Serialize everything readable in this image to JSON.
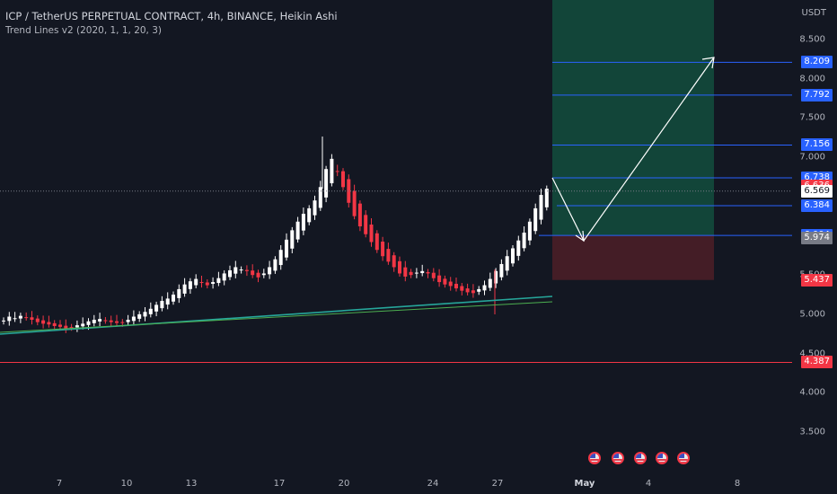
{
  "header": {
    "title": "ICP / TetherUS PERPETUAL CONTRACT, 4h, BINANCE, Heikin Ashi",
    "indicator": "Trend Lines v2 (2020, 1, 1, 20, 3)"
  },
  "axis": {
    "unit": "USDT",
    "y_ticks": [
      "8.500",
      "8.000",
      "7.500",
      "7.000",
      "5.500",
      "5.000",
      "4.500",
      "4.000",
      "3.500"
    ],
    "x_ticks": [
      "7",
      "10",
      "13",
      "17",
      "20",
      "24",
      "27",
      "May",
      "4",
      "8"
    ]
  },
  "price_labels": [
    {
      "value": "8.209",
      "kind": "target"
    },
    {
      "value": "7.792",
      "kind": "target"
    },
    {
      "value": "7.156",
      "kind": "target"
    },
    {
      "value": "6.738",
      "kind": "target"
    },
    {
      "value": "6.636",
      "kind": "current"
    },
    {
      "value": "6.569",
      "kind": "last"
    },
    {
      "value": "6.384",
      "kind": "target"
    },
    {
      "value": "6.004",
      "kind": "target"
    },
    {
      "value": "5.974",
      "kind": "prev"
    },
    {
      "value": "5.437",
      "kind": "stop"
    },
    {
      "value": "4.387",
      "kind": "support"
    }
  ],
  "colors": {
    "background": "#131722",
    "up": "#ffffff",
    "down": "#f23645",
    "level_line": "#2962ff",
    "trend_line": "#26a69a",
    "support_line": "#f23645",
    "profit_zone": "#134a3c",
    "loss_zone": "#4a1e27"
  },
  "events": {
    "count": 5,
    "icon": "us-flag-icon"
  },
  "chart_data": {
    "type": "candlestick",
    "series_style": "Heikin Ashi",
    "timeframe": "4h",
    "ylim": [
      3.2,
      8.9
    ],
    "closes": [
      4.92,
      4.97,
      4.95,
      4.98,
      4.96,
      4.93,
      4.9,
      4.88,
      4.87,
      4.85,
      4.84,
      4.82,
      4.83,
      4.86,
      4.88,
      4.91,
      4.93,
      4.94,
      4.92,
      4.9,
      4.89,
      4.9,
      4.93,
      4.97,
      5.0,
      5.03,
      5.07,
      5.12,
      5.17,
      5.2,
      5.25,
      5.32,
      5.38,
      5.42,
      5.45,
      5.4,
      5.37,
      5.41,
      5.46,
      5.52,
      5.56,
      5.6,
      5.57,
      5.55,
      5.5,
      5.47,
      5.52,
      5.6,
      5.7,
      5.82,
      5.95,
      6.07,
      6.18,
      6.28,
      6.35,
      6.45,
      6.62,
      6.85,
      6.98,
      6.82,
      6.62,
      6.42,
      6.25,
      6.12,
      6.02,
      5.92,
      5.82,
      5.74,
      5.67,
      5.6,
      5.52,
      5.48,
      5.5,
      5.53,
      5.55,
      5.52,
      5.46,
      5.41,
      5.38,
      5.36,
      5.33,
      5.3,
      5.28,
      5.27,
      5.32,
      5.37,
      5.45,
      5.55,
      5.64,
      5.74,
      5.84,
      5.94,
      6.04,
      6.18,
      6.35,
      6.52,
      6.6
    ]
  }
}
